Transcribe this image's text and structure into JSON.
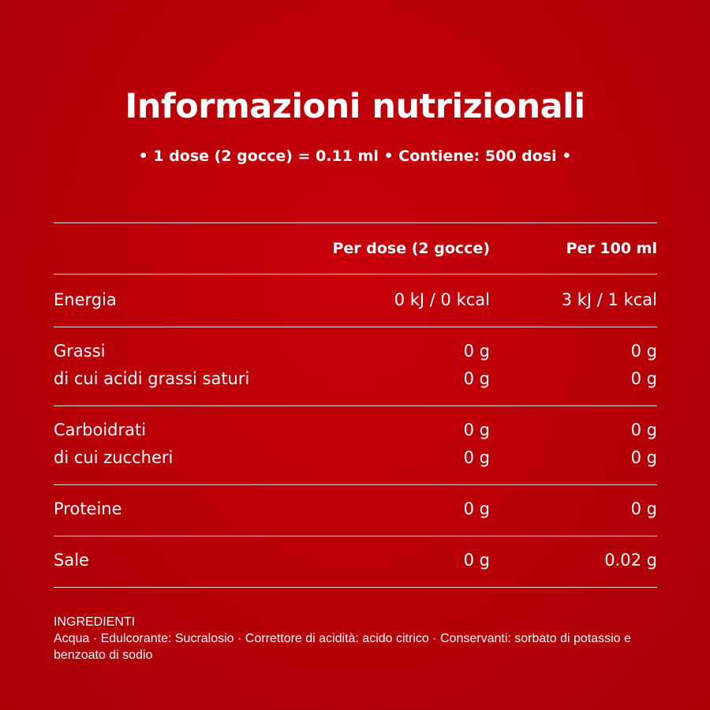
{
  "header": {
    "title": "Informazioni nutrizionali",
    "subtitle": "• 1 dose (2 gocce) = 0.11 ml • Contiene: 500 dosi •"
  },
  "table": {
    "columns": {
      "per_dose": "Per dose (2 gocce)",
      "per_100": "Per 100 ml"
    },
    "groups": [
      {
        "rows": [
          {
            "label": "Energia",
            "per_dose": "0 kJ / 0 kcal",
            "per_100": "3 kJ / 1 kcal"
          }
        ]
      },
      {
        "rows": [
          {
            "label": "Grassi",
            "per_dose": "0 g",
            "per_100": "0 g"
          },
          {
            "label": "di cui acidi grassi saturi",
            "per_dose": "0 g",
            "per_100": "0 g"
          }
        ]
      },
      {
        "rows": [
          {
            "label": "Carboidrati",
            "per_dose": "0 g",
            "per_100": "0 g"
          },
          {
            "label": "di cui zuccheri",
            "per_dose": "0 g",
            "per_100": "0 g"
          }
        ]
      },
      {
        "rows": [
          {
            "label": "Proteine",
            "per_dose": "0 g",
            "per_100": "0 g"
          }
        ]
      },
      {
        "rows": [
          {
            "label": "Sale",
            "per_dose": "0 g",
            "per_100": "0.02 g"
          }
        ]
      }
    ]
  },
  "ingredients": {
    "title": "INGREDIENTI",
    "text": "Acqua · Edulcorante: Sucralosio · Correttore di acidità: acido citrico · Conservanti: sorbato di potassio e benzoato di sodio"
  },
  "colors": {
    "background": "#b80008",
    "text": "#ffffff"
  }
}
